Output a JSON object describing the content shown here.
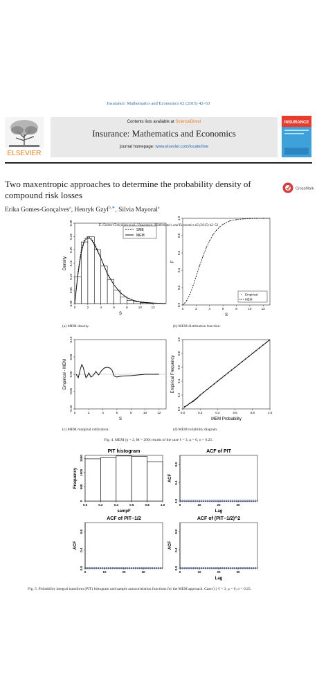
{
  "journal_ref": "Insurance: Mathematics and Economics 62 (2015) 42–53",
  "banner": {
    "publisher": "ELSEVIER",
    "contents_prefix": "Contents lists available at ",
    "contents_link": "ScienceDirect",
    "journal_title": "Insurance: Mathematics and Economics",
    "homepage_prefix": "journal homepage: ",
    "homepage_url": "www.elsevier.com/locate/ime",
    "cover_text": "INSURANCE"
  },
  "article": {
    "title": "Two maxentropic approaches to determine the probability density of compound risk losses",
    "authors": [
      {
        "name": "Erika Gomes-Gonçalves",
        "sup": "a"
      },
      {
        "name": "Henryk Gzyl",
        "sup": "b,∗"
      },
      {
        "name": "Silvia Mayoral",
        "sup": "a"
      }
    ],
    "crossmark": "CrossMark",
    "running_header": "E. Gomes-Gonçalves et al. / Insurance: Mathematics and Economics 62 (2015) 42–53"
  },
  "fig4": {
    "caption": "Fig. 4.   MEM (η = 2, M = 200) results of the case ℓ = 3, μ = 0, σ = 0.25.",
    "panels": {
      "a": "(a) MEM density.",
      "b": "(b) MEM distribution function.",
      "c": "(c) MEM marginal calibration.",
      "d": "(d) MEM reliability diagram."
    }
  },
  "fig5": {
    "caption": "Fig. 5.   Probability integral transform (PIT) histogram and sample autocorrelation functions for the MEM approach. Case (1) ℓ = 3, μ = 0, σ = 0.25."
  },
  "chart_data": [
    {
      "id": "fig4a",
      "type": "bar",
      "title": "",
      "xlabel": "S",
      "ylabel": "Density",
      "xlim": [
        0,
        14
      ],
      "ylim": [
        0,
        0.3
      ],
      "x_ticks": [
        "0",
        "2",
        "4",
        "6",
        "8",
        "10",
        "12"
      ],
      "y_ticks": [
        "0.00",
        "0.05",
        "0.10",
        "0.15",
        "0.20",
        "0.25",
        "0.30"
      ],
      "histogram": {
        "bin_edges": [
          0,
          1,
          2,
          3,
          4,
          5,
          6,
          7,
          8,
          9,
          10,
          11,
          12
        ],
        "values": [
          0.1,
          0.23,
          0.25,
          0.2,
          0.14,
          0.09,
          0.05,
          0.025,
          0.012,
          0.006,
          0.003,
          0.001
        ]
      },
      "series": [
        {
          "name": "SME",
          "style": "dashed",
          "x": [
            0,
            0.5,
            1,
            1.5,
            2,
            2.5,
            3,
            3.5,
            4,
            5,
            6,
            7,
            8,
            9,
            10,
            12,
            14
          ],
          "y": [
            0,
            0.12,
            0.2,
            0.24,
            0.25,
            0.245,
            0.225,
            0.2,
            0.17,
            0.11,
            0.07,
            0.04,
            0.022,
            0.012,
            0.006,
            0.002,
            0
          ]
        },
        {
          "name": "MEM",
          "style": "solid",
          "x": [
            0,
            0.5,
            1,
            1.5,
            2,
            2.5,
            3,
            3.5,
            4,
            5,
            6,
            7,
            8,
            9,
            10,
            12,
            14
          ],
          "y": [
            0,
            0.11,
            0.19,
            0.235,
            0.245,
            0.24,
            0.22,
            0.195,
            0.17,
            0.112,
            0.07,
            0.04,
            0.022,
            0.012,
            0.006,
            0.002,
            0
          ]
        }
      ],
      "legend": "top-right"
    },
    {
      "id": "fig4b",
      "type": "line",
      "title": "",
      "xlabel": "S",
      "ylabel": "F",
      "xlim": [
        0,
        13
      ],
      "ylim": [
        0,
        1
      ],
      "x_ticks": [
        "0",
        "2",
        "4",
        "6",
        "8",
        "10",
        "12"
      ],
      "y_ticks": [
        "0.0",
        "0.2",
        "0.4",
        "0.6",
        "0.8",
        "1.0"
      ],
      "series": [
        {
          "name": "Empirical",
          "style": "points",
          "x": [
            0.3,
            0.6,
            1,
            1.5,
            2,
            2.5,
            3,
            3.5,
            4,
            4.5,
            5,
            5.5,
            6,
            6.5,
            7,
            8,
            9,
            10,
            11,
            12
          ],
          "y": [
            0.02,
            0.05,
            0.12,
            0.22,
            0.33,
            0.45,
            0.56,
            0.66,
            0.74,
            0.81,
            0.86,
            0.9,
            0.93,
            0.95,
            0.97,
            0.985,
            0.993,
            0.997,
            0.999,
            1.0
          ]
        },
        {
          "name": "MEM",
          "style": "dashed",
          "x": [
            0,
            0.5,
            1,
            1.5,
            2,
            2.5,
            3,
            3.5,
            4,
            4.5,
            5,
            5.5,
            6,
            6.5,
            7,
            8,
            9,
            10,
            11,
            12,
            13
          ],
          "y": [
            0,
            0.04,
            0.11,
            0.21,
            0.33,
            0.45,
            0.56,
            0.66,
            0.74,
            0.81,
            0.86,
            0.9,
            0.93,
            0.95,
            0.97,
            0.985,
            0.993,
            0.997,
            0.999,
            1.0,
            1.0
          ]
        }
      ],
      "legend": "bottom-right"
    },
    {
      "id": "fig4c",
      "type": "line",
      "title": "",
      "xlabel": "S",
      "ylabel": "Empirical - MEM",
      "xlim": [
        0,
        13
      ],
      "ylim": [
        -0.1,
        0.1
      ],
      "x_ticks": [
        "0",
        "2",
        "4",
        "6",
        "8",
        "10",
        "12"
      ],
      "y_ticks": [
        "-0.10",
        "-0.05",
        "0.00",
        "0.05",
        "0.10"
      ],
      "series": [
        {
          "name": "",
          "x": [
            0.2,
            0.5,
            0.8,
            1.0,
            1.2,
            1.4,
            1.6,
            1.8,
            2.0,
            2.3,
            2.6,
            3.0,
            3.4,
            3.8,
            4.2,
            4.6,
            5.0,
            5.3,
            5.6,
            6.0,
            6.4,
            7,
            8,
            9,
            10,
            11,
            12
          ],
          "y": [
            0,
            -0.01,
            0.015,
            0.028,
            0.02,
            0.005,
            -0.01,
            -0.005,
            0.004,
            -0.008,
            -0.004,
            0.008,
            -0.002,
            0.01,
            0.018,
            0.02,
            0.018,
            0.012,
            -0.005,
            -0.008,
            -0.006,
            -0.005,
            -0.004,
            -0.002,
            0,
            0,
            0
          ]
        }
      ]
    },
    {
      "id": "fig4d",
      "type": "scatter",
      "title": "",
      "xlabel": "MEM Probability",
      "ylabel": "Empirical Frequency",
      "xlim": [
        0,
        1
      ],
      "ylim": [
        0,
        1
      ],
      "x_ticks": [
        "0.0",
        "0.2",
        "0.4",
        "0.6",
        "0.8",
        "1.0"
      ],
      "y_ticks": [
        "0.0",
        "0.2",
        "0.4",
        "0.6",
        "0.8",
        "1.0"
      ],
      "series": [
        {
          "name": "",
          "x": [
            0.02,
            0.05,
            0.08,
            0.12,
            0.16,
            0.2,
            0.24,
            0.28,
            0.32,
            0.36,
            0.4,
            0.44,
            0.48,
            0.52,
            0.56,
            0.6,
            0.64,
            0.68,
            0.72,
            0.76,
            0.8,
            0.84,
            0.88,
            0.92,
            0.96,
            0.99
          ],
          "y": [
            0.03,
            0.05,
            0.08,
            0.11,
            0.15,
            0.2,
            0.24,
            0.28,
            0.32,
            0.36,
            0.4,
            0.44,
            0.48,
            0.52,
            0.56,
            0.6,
            0.64,
            0.68,
            0.72,
            0.76,
            0.8,
            0.84,
            0.88,
            0.92,
            0.96,
            0.99
          ]
        }
      ]
    },
    {
      "id": "fig5a",
      "type": "bar",
      "title": "PIT histogram",
      "xlabel": "sampF",
      "ylabel": "Frequency",
      "xlim": [
        0,
        1
      ],
      "ylim": [
        0,
        1600
      ],
      "x_ticks": [
        "0.0",
        "0.2",
        "0.4",
        "0.6",
        "0.8",
        "1.0"
      ],
      "y_ticks": [
        "0",
        "500",
        "1000",
        "1500"
      ],
      "histogram": {
        "bin_edges": [
          0,
          0.2,
          0.4,
          0.6,
          0.8,
          1.0
        ],
        "values": [
          1480,
          1520,
          1580,
          1560,
          1380
        ]
      }
    },
    {
      "id": "fig5b",
      "type": "bar",
      "title": "ACF of PIT",
      "xlabel": "Lag",
      "ylabel": "ACF",
      "xlim": [
        0,
        40
      ],
      "ylim": [
        0,
        1
      ],
      "x_ticks": [
        "0",
        "10",
        "20",
        "30"
      ],
      "y_ticks": [
        "0.0",
        "0.4",
        "0.8"
      ],
      "ci": 0.02
    },
    {
      "id": "fig5c",
      "type": "bar",
      "title": "ACF of PIT−1/2",
      "xlabel": "",
      "ylabel": "ACF",
      "xlim": [
        0,
        40
      ],
      "ylim": [
        0,
        1
      ],
      "x_ticks": [
        "0",
        "10",
        "20",
        "30"
      ],
      "y_ticks": [
        "0.0",
        "0.4",
        "0.8"
      ],
      "ci": 0.02
    },
    {
      "id": "fig5d",
      "type": "bar",
      "title": "ACF of (PIT−1/2)^2",
      "xlabel": "Lag",
      "ylabel": "ACF",
      "xlim": [
        0,
        40
      ],
      "ylim": [
        0,
        1
      ],
      "x_ticks": [
        "0",
        "10",
        "20",
        "30"
      ],
      "y_ticks": [
        "0.0",
        "0.4",
        "0.8"
      ],
      "ci": 0.02
    }
  ]
}
